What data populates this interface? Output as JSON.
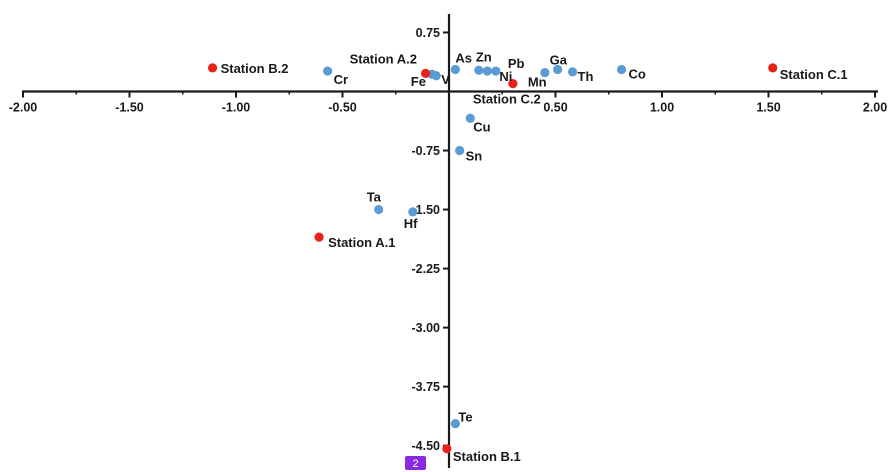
{
  "chart_data": {
    "type": "scatter",
    "title": "",
    "xlabel": "",
    "ylabel": "",
    "xlim": [
      -2.0,
      2.0
    ],
    "ylim": [
      -4.75,
      0.85
    ],
    "grid": false,
    "legend": "none",
    "x_ticks": [
      -2.0,
      -1.5,
      -1.0,
      -0.5,
      0.5,
      1.0,
      1.5,
      2.0
    ],
    "x_tick_labels": [
      "-2.00",
      "-1.50",
      "-1.00",
      "-0.50",
      "0.50",
      "1.00",
      "1.50",
      "2.00"
    ],
    "y_ticks": [
      0.75,
      -0.75,
      -1.5,
      -2.25,
      -3.0,
      -3.75,
      -4.5
    ],
    "y_tick_labels": [
      "0.75",
      "-0.75",
      "-1.50",
      "-2.25",
      "-3.00",
      "-3.75",
      "-4.50"
    ],
    "series": [
      {
        "color": "#5b9bd5",
        "points": [
          {
            "label": "As",
            "x": 0.03,
            "y": 0.28
          },
          {
            "label": "Zn",
            "x": 0.14,
            "y": 0.27
          },
          {
            "label": "Pb",
            "x": 0.22,
            "y": 0.26
          },
          {
            "label": "Fe",
            "x": -0.08,
            "y": 0.22
          },
          {
            "label": "V",
            "x": -0.06,
            "y": 0.2
          },
          {
            "label": "Ni",
            "x": 0.18,
            "y": 0.26
          },
          {
            "label": "Ga",
            "x": 0.51,
            "y": 0.28
          },
          {
            "label": "Mn",
            "x": 0.45,
            "y": 0.24
          },
          {
            "label": "Th",
            "x": 0.58,
            "y": 0.25
          },
          {
            "label": "Co",
            "x": 0.81,
            "y": 0.28
          },
          {
            "label": "Cr",
            "x": -0.57,
            "y": 0.26
          },
          {
            "label": "Cu",
            "x": 0.1,
            "y": -0.34
          },
          {
            "label": "Sn",
            "x": 0.05,
            "y": -0.75
          },
          {
            "label": "Ta",
            "x": -0.33,
            "y": -1.5
          },
          {
            "label": "Hf",
            "x": -0.17,
            "y": -1.53
          },
          {
            "label": "Te",
            "x": 0.03,
            "y": -4.22
          }
        ]
      },
      {
        "color": "#e8211d",
        "points": [
          {
            "label": "Station B.2",
            "x": -1.11,
            "y": 0.3
          },
          {
            "label": "Station A.2",
            "x": -0.11,
            "y": 0.23
          },
          {
            "label": "Station C.2",
            "x": 0.3,
            "y": 0.1
          },
          {
            "label": "Station C.1",
            "x": 1.52,
            "y": 0.3
          },
          {
            "label": "Station A.1",
            "x": -0.61,
            "y": -1.85
          },
          {
            "label": "Station B.1",
            "x": -0.01,
            "y": -4.54
          }
        ]
      }
    ]
  },
  "badge_label": "2"
}
